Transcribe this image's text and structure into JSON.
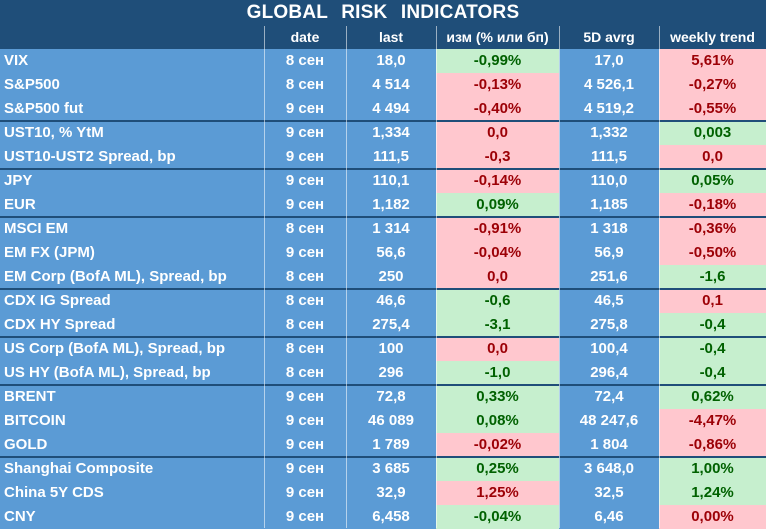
{
  "title": "GLOBAL   RISK   INDICATORS",
  "headers": {
    "name": "",
    "date": "date",
    "last": "last",
    "chg": "изм (% или бп)",
    "avg": "5D avrg",
    "wk": "weekly trend"
  },
  "rows": [
    {
      "name": "VIX",
      "date": "8 сен",
      "last": "18,0",
      "chg": "-0,99%",
      "chg_dir": "pos",
      "avg": "17,0",
      "wk": "5,61%",
      "wk_dir": "neg"
    },
    {
      "name": "S&P500",
      "date": "8 сен",
      "last": "4 514",
      "chg": "-0,13%",
      "chg_dir": "neg",
      "avg": "4 526,1",
      "wk": "-0,27%",
      "wk_dir": "neg"
    },
    {
      "name": "S&P500 fut",
      "date": "9 сен",
      "last": "4 494",
      "chg": "-0,40%",
      "chg_dir": "neg",
      "avg": "4 519,2",
      "wk": "-0,55%",
      "wk_dir": "neg"
    },
    {
      "name": "UST10, % YtM",
      "date": "9 сен",
      "last": "1,334",
      "chg": "0,0",
      "chg_dir": "neg",
      "avg": "1,332",
      "wk": "0,003",
      "wk_dir": "pos"
    },
    {
      "name": "UST10-UST2 Spread, bp",
      "date": "9 сен",
      "last": "111,5",
      "chg": "-0,3",
      "chg_dir": "neg",
      "avg": "111,5",
      "wk": "0,0",
      "wk_dir": "neg"
    },
    {
      "name": "JPY",
      "date": "9 сен",
      "last": "110,1",
      "chg": "-0,14%",
      "chg_dir": "neg",
      "avg": "110,0",
      "wk": "0,05%",
      "wk_dir": "pos"
    },
    {
      "name": "EUR",
      "date": "9 сен",
      "last": "1,182",
      "chg": "0,09%",
      "chg_dir": "pos",
      "avg": "1,185",
      "wk": "-0,18%",
      "wk_dir": "neg"
    },
    {
      "name": "MSCI EM",
      "date": "8 сен",
      "last": "1 314",
      "chg": "-0,91%",
      "chg_dir": "neg",
      "avg": "1 318",
      "wk": "-0,36%",
      "wk_dir": "neg"
    },
    {
      "name": "EM FX (JPM)",
      "date": "9 сен",
      "last": "56,6",
      "chg": "-0,04%",
      "chg_dir": "neg",
      "avg": "56,9",
      "wk": "-0,50%",
      "wk_dir": "neg"
    },
    {
      "name": "EM Corp (BofA ML), Spread, bp",
      "date": "8 сен",
      "last": "250",
      "chg": "0,0",
      "chg_dir": "neg",
      "avg": "251,6",
      "wk": "-1,6",
      "wk_dir": "pos"
    },
    {
      "name": "CDX IG Spread",
      "date": "8 сен",
      "last": "46,6",
      "chg": "-0,6",
      "chg_dir": "pos",
      "avg": "46,5",
      "wk": "0,1",
      "wk_dir": "neg"
    },
    {
      "name": "CDX HY Spread",
      "date": "8 сен",
      "last": "275,4",
      "chg": "-3,1",
      "chg_dir": "pos",
      "avg": "275,8",
      "wk": "-0,4",
      "wk_dir": "pos"
    },
    {
      "name": "US Corp (BofA ML), Spread, bp",
      "date": "8 сен",
      "last": "100",
      "chg": "0,0",
      "chg_dir": "neg",
      "avg": "100,4",
      "wk": "-0,4",
      "wk_dir": "pos"
    },
    {
      "name": "US HY (BofA ML), Spread, bp",
      "date": "8 сен",
      "last": "296",
      "chg": "-1,0",
      "chg_dir": "pos",
      "avg": "296,4",
      "wk": "-0,4",
      "wk_dir": "pos"
    },
    {
      "name": "BRENT",
      "date": "9 сен",
      "last": "72,8",
      "chg": "0,33%",
      "chg_dir": "pos",
      "avg": "72,4",
      "wk": "0,62%",
      "wk_dir": "pos"
    },
    {
      "name": "BITCOIN",
      "date": "9 сен",
      "last": "46 089",
      "chg": "0,08%",
      "chg_dir": "pos",
      "avg": "48 247,6",
      "wk": "-4,47%",
      "wk_dir": "neg"
    },
    {
      "name": "GOLD",
      "date": "9 сен",
      "last": "1 789",
      "chg": "-0,02%",
      "chg_dir": "neg",
      "avg": "1 804",
      "wk": "-0,86%",
      "wk_dir": "neg"
    },
    {
      "name": "Shanghai Composite",
      "date": "9 сен",
      "last": "3 685",
      "chg": "0,25%",
      "chg_dir": "pos",
      "avg": "3 648,0",
      "wk": "1,00%",
      "wk_dir": "pos"
    },
    {
      "name": "China 5Y CDS",
      "date": "9 сен",
      "last": "32,9",
      "chg": "1,25%",
      "chg_dir": "neg",
      "avg": "32,5",
      "wk": "1,24%",
      "wk_dir": "pos"
    },
    {
      "name": "CNY",
      "date": "9 сен",
      "last": "6,458",
      "chg": "-0,04%",
      "chg_dir": "pos",
      "avg": "6,46",
      "wk": "0,00%",
      "wk_dir": "neg"
    }
  ],
  "colors": {
    "header_bg": "#1f4e79",
    "row_bg": "#5b9bd5",
    "positive_bg": "#c6efce",
    "positive_text": "#006100",
    "negative_bg": "#ffc7ce",
    "negative_text": "#9c0006"
  }
}
